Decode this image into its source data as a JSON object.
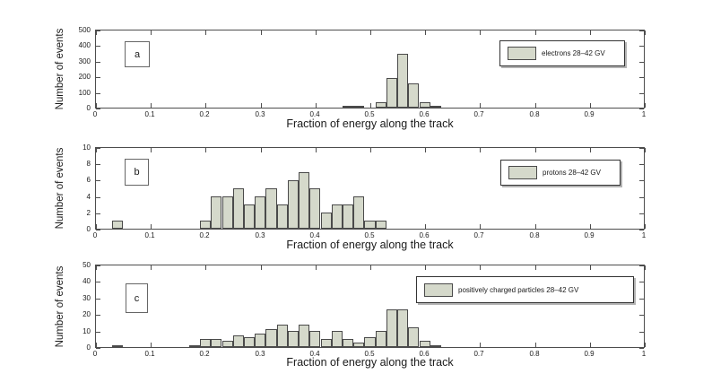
{
  "figure": {
    "background": "#ffffff",
    "bar_fill_color": "#d5d9cb",
    "bar_edge_color": "#4a4a4a",
    "axis_color": "#4d4d4d",
    "shared_xlabel": "Fraction of energy along the track",
    "shared_ylabel": "Number of events"
  },
  "chart_data": [
    {
      "type": "bar",
      "panel_label": "a",
      "legend": "electrons 28–42 GV",
      "legend_position": "upper right",
      "xlabel": "Fraction of energy along the track",
      "ylabel": "Number of events",
      "xlim": [
        0,
        1
      ],
      "ylim": [
        0,
        500
      ],
      "grid": false,
      "bin_width": 0.02,
      "xticks": [
        "0",
        "0.1",
        "0.2",
        "0.3",
        "0.4",
        "0.5",
        "0.6",
        "0.7",
        "0.8",
        "0.9",
        "1"
      ],
      "yticks": [
        0,
        100,
        200,
        300,
        400,
        500
      ],
      "bins": [
        [
          0.45,
          5
        ],
        [
          0.47,
          5
        ],
        [
          0.51,
          35
        ],
        [
          0.53,
          195
        ],
        [
          0.55,
          350
        ],
        [
          0.57,
          160
        ],
        [
          0.59,
          35
        ],
        [
          0.61,
          5
        ]
      ]
    },
    {
      "type": "bar",
      "panel_label": "b",
      "legend": "protons 28–42 GV",
      "legend_position": "upper right",
      "xlabel": "Fraction of energy along the track",
      "ylabel": "Number of events",
      "xlim": [
        0,
        1
      ],
      "ylim": [
        0,
        10
      ],
      "grid": false,
      "bin_width": 0.02,
      "xticks": [
        "0",
        "0.1",
        "0.2",
        "0.3",
        "0.4",
        "0.5",
        "0.6",
        "0.7",
        "0.8",
        "0.9",
        "1"
      ],
      "yticks": [
        0,
        2,
        4,
        6,
        8,
        10
      ],
      "bins": [
        [
          0.03,
          1
        ],
        [
          0.19,
          1
        ],
        [
          0.21,
          4
        ],
        [
          0.23,
          4
        ],
        [
          0.25,
          5
        ],
        [
          0.27,
          3
        ],
        [
          0.29,
          4
        ],
        [
          0.31,
          5
        ],
        [
          0.33,
          3
        ],
        [
          0.35,
          6
        ],
        [
          0.37,
          7
        ],
        [
          0.39,
          5
        ],
        [
          0.41,
          2
        ],
        [
          0.43,
          3
        ],
        [
          0.45,
          3
        ],
        [
          0.47,
          4
        ],
        [
          0.49,
          1
        ],
        [
          0.51,
          1
        ]
      ]
    },
    {
      "type": "bar",
      "panel_label": "c",
      "legend": "positively charged particles 28–42 GV",
      "legend_position": "upper right",
      "xlabel": "Fraction of energy along the track",
      "ylabel": "Number of events",
      "xlim": [
        0,
        1
      ],
      "ylim": [
        0,
        50
      ],
      "grid": false,
      "bin_width": 0.02,
      "xticks": [
        "0",
        "0.1",
        "0.2",
        "0.3",
        "0.4",
        "0.5",
        "0.6",
        "0.7",
        "0.8",
        "0.9",
        "1"
      ],
      "yticks": [
        0,
        10,
        20,
        30,
        40,
        50
      ],
      "bins": [
        [
          0.03,
          1
        ],
        [
          0.17,
          1
        ],
        [
          0.19,
          5
        ],
        [
          0.21,
          5
        ],
        [
          0.23,
          4
        ],
        [
          0.25,
          7
        ],
        [
          0.27,
          6
        ],
        [
          0.29,
          8
        ],
        [
          0.31,
          11
        ],
        [
          0.33,
          14
        ],
        [
          0.35,
          10
        ],
        [
          0.37,
          14
        ],
        [
          0.39,
          10
        ],
        [
          0.41,
          5
        ],
        [
          0.43,
          10
        ],
        [
          0.45,
          5
        ],
        [
          0.47,
          3
        ],
        [
          0.49,
          6
        ],
        [
          0.51,
          10
        ],
        [
          0.53,
          23
        ],
        [
          0.55,
          23
        ],
        [
          0.57,
          12
        ],
        [
          0.59,
          4
        ],
        [
          0.61,
          1
        ]
      ]
    }
  ]
}
